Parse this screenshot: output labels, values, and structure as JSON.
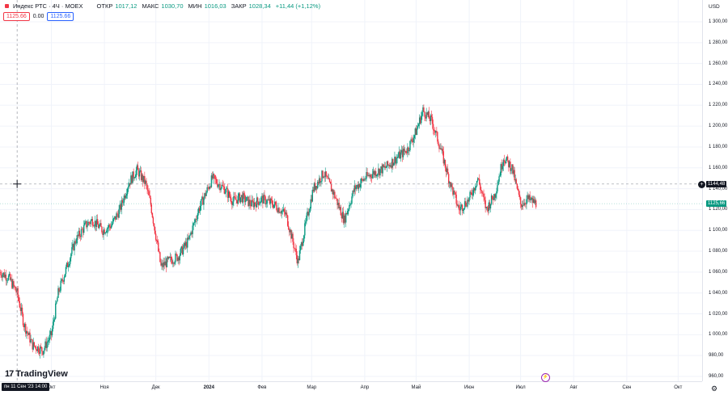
{
  "legend": {
    "symbol": "Индекс РТС · 4Ч · MOEX",
    "open_label": "ОТКР",
    "open_value": "1017,12",
    "high_label": "МАКС",
    "high_value": "1030,70",
    "low_label": "МИН",
    "low_value": "1016,03",
    "close_label": "ЗАКР",
    "close_value": "1028,34",
    "change": "+11,44 (+1,12%)"
  },
  "trade_pills": {
    "sell": "1125.66",
    "spread": "0.00",
    "buy": "1125.66"
  },
  "price_axis": {
    "currency": "USD",
    "crosshair_price": "1144,48",
    "last_price": "1125,66"
  },
  "time_axis": {
    "crosshair_time": "пн 11 Сен '23  14:00"
  },
  "branding": {
    "logo_text": "TradingView"
  },
  "icons": {
    "bolt": "lightning-bolt-icon",
    "settings": "gear-icon",
    "crosshair": "crosshair-icon",
    "plus": "plus-icon",
    "flag": "red-flag-icon"
  },
  "colors": {
    "up": "#089981",
    "down": "#f23645",
    "axis_text": "#131722"
  },
  "chart_data": {
    "type": "line",
    "subtype": "candlestick",
    "title": "Индекс РТС · 4Ч · MOEX",
    "ylabel": "USD",
    "ylim": [
      955,
      1310
    ],
    "yticks": [
      960,
      980,
      1000,
      1020,
      1040,
      1060,
      1080,
      1100,
      1120,
      1140,
      1160,
      1180,
      1200,
      1220,
      1240,
      1260,
      1280,
      1300
    ],
    "ytick_labels": [
      "960,00",
      "980,00",
      "1 000,00",
      "1 020,00",
      "1 040,00",
      "1 060,00",
      "1 080,00",
      "1 100,00",
      "1 120,00",
      "1 140,00",
      "1 160,00",
      "1 180,00",
      "1 200,00",
      "1 220,00",
      "1 240,00",
      "1 260,00",
      "1 280,00",
      "1 300,00"
    ],
    "x_tick_labels": [
      "Окт",
      "Ноя",
      "Дек",
      "2024",
      "Фев",
      "Мар",
      "Апр",
      "Май",
      "Июн",
      "Июл",
      "Авг",
      "Сен",
      "Окт"
    ],
    "x_tick_dates": [
      "2023-10-01",
      "2023-11-01",
      "2023-12-01",
      "2024-01-01",
      "2024-02-01",
      "2024-03-01",
      "2024-04-01",
      "2024-05-01",
      "2024-06-01",
      "2024-07-01",
      "2024-08-01",
      "2024-09-01",
      "2024-10-01"
    ],
    "x_range": [
      "2023-09-01",
      "2024-10-15"
    ],
    "grid": true,
    "crosshair": {
      "date": "2023-09-11",
      "price": 1144.48
    },
    "last_price": 1125.66,
    "series": [
      {
        "type": "close_path",
        "dates": [
          "2023-09-01",
          "2023-09-06",
          "2023-09-11",
          "2023-09-15",
          "2023-09-20",
          "2023-09-26",
          "2023-10-01",
          "2023-10-05",
          "2023-10-11",
          "2023-10-15",
          "2023-10-21",
          "2023-10-25",
          "2023-10-31",
          "2023-11-05",
          "2023-11-10",
          "2023-11-15",
          "2023-11-20",
          "2023-11-25",
          "2023-11-28",
          "2023-12-01",
          "2023-12-04",
          "2023-12-08",
          "2023-12-14",
          "2023-12-20",
          "2023-12-26",
          "2024-01-03",
          "2024-01-10",
          "2024-01-15",
          "2024-01-20",
          "2024-01-26",
          "2024-02-01",
          "2024-02-08",
          "2024-02-15",
          "2024-02-22",
          "2024-02-27",
          "2024-03-02",
          "2024-03-08",
          "2024-03-14",
          "2024-03-20",
          "2024-03-26",
          "2024-04-01",
          "2024-04-06",
          "2024-04-13",
          "2024-04-20",
          "2024-04-26",
          "2024-05-01",
          "2024-05-05",
          "2024-05-10",
          "2024-05-15",
          "2024-05-20",
          "2024-05-26",
          "2024-06-01",
          "2024-06-06",
          "2024-06-11",
          "2024-06-16",
          "2024-06-21",
          "2024-06-26",
          "2024-07-01",
          "2024-07-05",
          "2024-07-10"
        ],
        "values": [
          1060,
          1055,
          1040,
          1010,
          990,
          985,
          1000,
          1040,
          1070,
          1090,
          1105,
          1110,
          1100,
          1105,
          1120,
          1145,
          1158,
          1145,
          1125,
          1095,
          1065,
          1070,
          1075,
          1090,
          1120,
          1150,
          1140,
          1128,
          1132,
          1125,
          1130,
          1125,
          1115,
          1070,
          1110,
          1140,
          1155,
          1135,
          1110,
          1140,
          1150,
          1155,
          1160,
          1170,
          1178,
          1195,
          1215,
          1205,
          1180,
          1150,
          1120,
          1130,
          1150,
          1120,
          1135,
          1170,
          1160,
          1125,
          1130,
          1126
        ]
      }
    ]
  }
}
